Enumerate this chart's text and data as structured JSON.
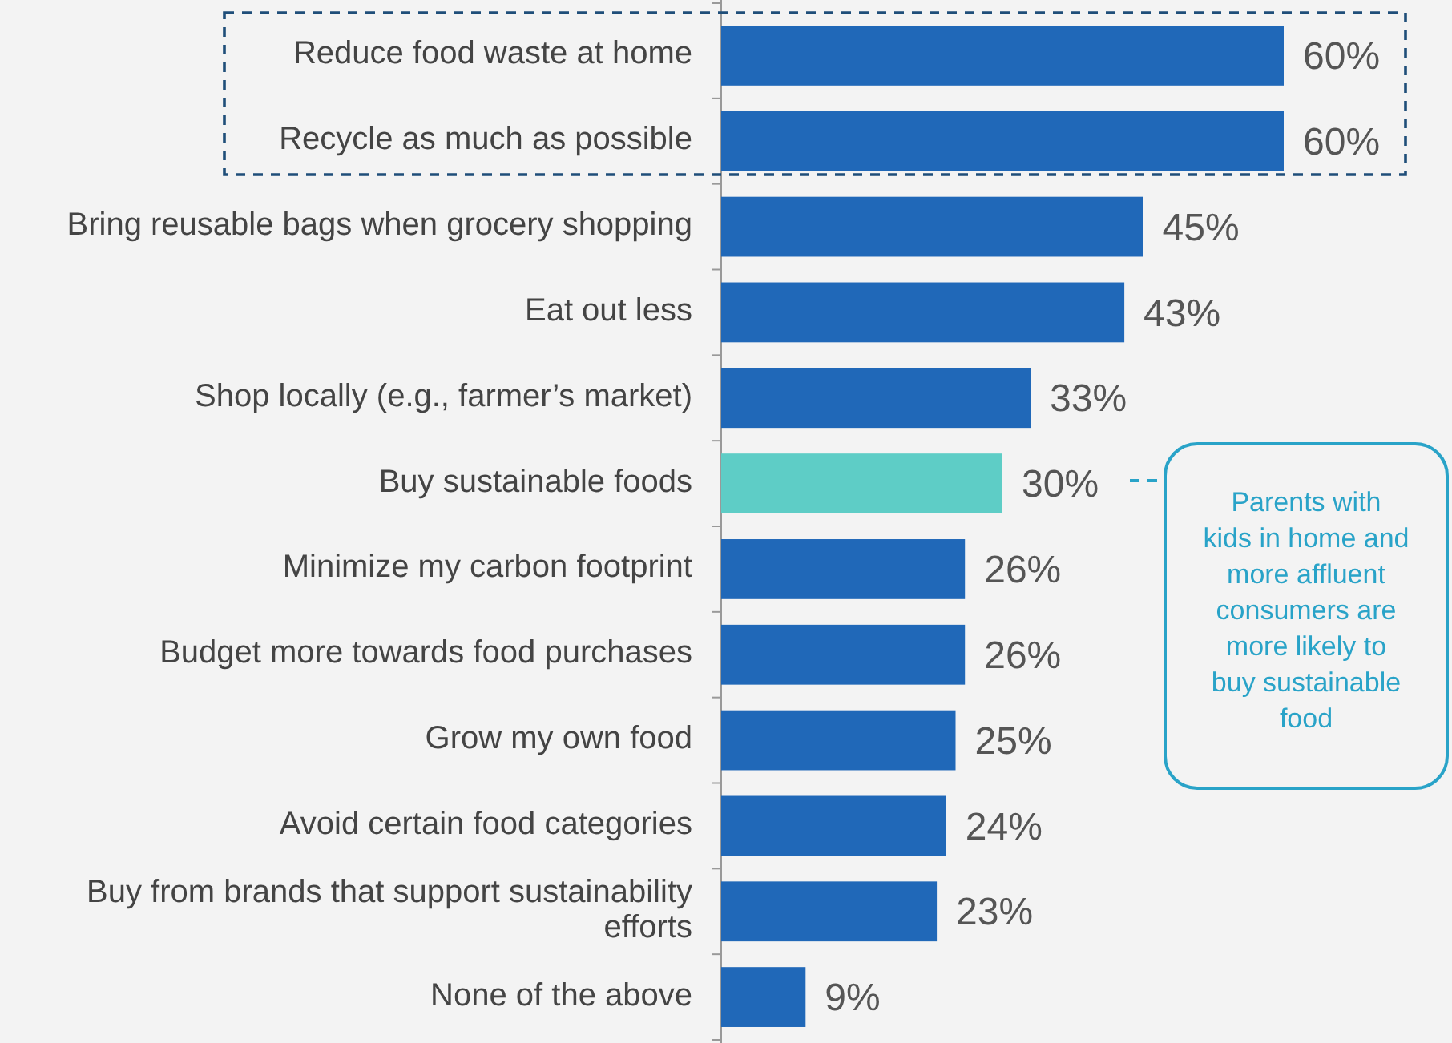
{
  "chart_data": {
    "type": "bar",
    "orientation": "horizontal",
    "categories": [
      "Reduce food waste at home",
      "Recycle as much as possible",
      "Bring reusable bags when grocery shopping",
      "Eat out less",
      "Shop locally (e.g., farmer’s market)",
      "Buy sustainable foods",
      "Minimize my carbon footprint",
      "Budget more towards food purchases",
      "Grow my own food",
      "Avoid certain food categories",
      "Buy from brands that support sustainability efforts",
      "None of the above"
    ],
    "values": [
      60,
      60,
      45,
      43,
      33,
      30,
      26,
      26,
      25,
      24,
      23,
      9
    ],
    "value_labels": [
      "60%",
      "60%",
      "45%",
      "43%",
      "33%",
      "30%",
      "26%",
      "26%",
      "25%",
      "24%",
      "23%",
      "9%"
    ],
    "colors": [
      "#2068b8",
      "#2068b8",
      "#2068b8",
      "#2068b8",
      "#2068b8",
      "#5ecdc6",
      "#2068b8",
      "#2068b8",
      "#2068b8",
      "#2068b8",
      "#2068b8",
      "#2068b8"
    ],
    "annotations": [
      "Parents with kids in home and more affluent consumers are more likely to buy sustainable food"
    ]
  }
}
